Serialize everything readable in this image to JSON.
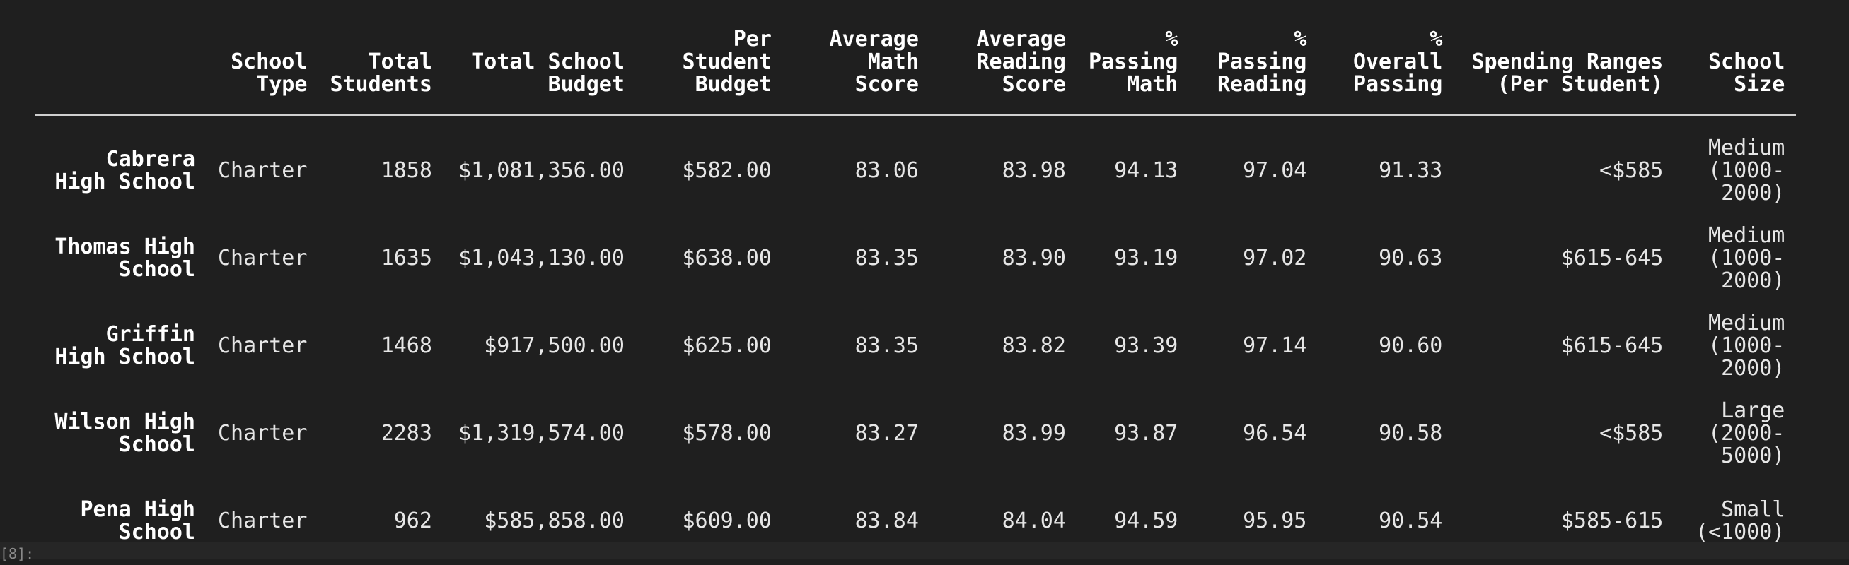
{
  "table": {
    "headers": [
      "",
      "School Type",
      "Total Students",
      "Total School Budget",
      "Per Student Budget",
      "Average Math Score",
      "Average Reading Score",
      "% Passing Math",
      "% Passing Reading",
      "% Overall Passing",
      "Spending Ranges (Per Student)",
      "School Size"
    ],
    "rows": [
      {
        "name": "Cabrera High School",
        "type": "Charter",
        "students": "1858",
        "budget": "$1,081,356.00",
        "per_student": "$582.00",
        "math": "83.06",
        "reading": "83.98",
        "pass_math": "94.13",
        "pass_reading": "97.04",
        "overall": "91.33",
        "spending_range": "<$585",
        "size": "Medium (1000-2000)"
      },
      {
        "name": "Thomas High School",
        "type": "Charter",
        "students": "1635",
        "budget": "$1,043,130.00",
        "per_student": "$638.00",
        "math": "83.35",
        "reading": "83.90",
        "pass_math": "93.19",
        "pass_reading": "97.02",
        "overall": "90.63",
        "spending_range": "$615-645",
        "size": "Medium (1000-2000)"
      },
      {
        "name": "Griffin High School",
        "type": "Charter",
        "students": "1468",
        "budget": "$917,500.00",
        "per_student": "$625.00",
        "math": "83.35",
        "reading": "83.82",
        "pass_math": "93.39",
        "pass_reading": "97.14",
        "overall": "90.60",
        "spending_range": "$615-645",
        "size": "Medium (1000-2000)"
      },
      {
        "name": "Wilson High School",
        "type": "Charter",
        "students": "2283",
        "budget": "$1,319,574.00",
        "per_student": "$578.00",
        "math": "83.27",
        "reading": "83.99",
        "pass_math": "93.87",
        "pass_reading": "96.54",
        "overall": "90.58",
        "spending_range": "<$585",
        "size": "Large (2000-5000)"
      },
      {
        "name": "Pena High School",
        "type": "Charter",
        "students": "962",
        "budget": "$585,858.00",
        "per_student": "$609.00",
        "math": "83.84",
        "reading": "84.04",
        "pass_math": "94.59",
        "pass_reading": "95.95",
        "overall": "90.54",
        "spending_range": "$585-615",
        "size": "Small (<1000)"
      }
    ]
  },
  "prompt": {
    "label": "[8]:"
  }
}
